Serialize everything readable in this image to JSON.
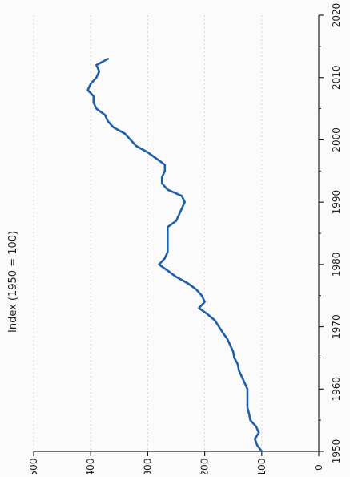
{
  "chart_data": {
    "type": "line",
    "title": "Index (1950 = 100)",
    "xlabel": "",
    "ylabel": "",
    "xlim": [
      1950,
      2020
    ],
    "ylim": [
      0,
      500
    ],
    "x_ticks": [
      1950,
      1960,
      1970,
      1980,
      1990,
      2000,
      2010,
      2020
    ],
    "y_ticks": [
      0,
      100,
      200,
      300,
      400,
      500
    ],
    "grid": true,
    "orientation": "rotated-90-clockwise",
    "colors": {
      "line": "#1f5fa8",
      "grid": "#d9d9d9",
      "axis": "#222222"
    },
    "series": [
      {
        "x": [
          1950,
          1951,
          1952,
          1953,
          1954,
          1955,
          1956,
          1957,
          1958,
          1959,
          1960,
          1961,
          1962,
          1963,
          1964,
          1965,
          1966,
          1967,
          1968,
          1969,
          1970,
          1971,
          1972,
          1973,
          1974,
          1975,
          1976,
          1977,
          1978,
          1979,
          1980,
          1981,
          1982,
          1983,
          1984,
          1985,
          1986,
          1987,
          1988,
          1989,
          1990,
          1991,
          1992,
          1993,
          1994,
          1995,
          1996,
          1997,
          1998,
          1999,
          2000,
          2001,
          2002,
          2003,
          2004,
          2005,
          2006,
          2007,
          2008,
          2009,
          2010,
          2011,
          2012,
          2013
        ],
        "values": [
          100,
          108,
          112,
          105,
          110,
          120,
          122,
          125,
          125,
          125,
          125,
          130,
          135,
          140,
          142,
          148,
          150,
          155,
          160,
          168,
          175,
          182,
          195,
          210,
          200,
          205,
          215,
          230,
          250,
          265,
          280,
          270,
          265,
          265,
          265,
          265,
          265,
          250,
          245,
          240,
          235,
          240,
          265,
          275,
          275,
          270,
          270,
          285,
          300,
          320,
          330,
          340,
          360,
          370,
          375,
          390,
          395,
          395,
          405,
          400,
          390,
          385,
          390,
          370
        ]
      }
    ]
  }
}
